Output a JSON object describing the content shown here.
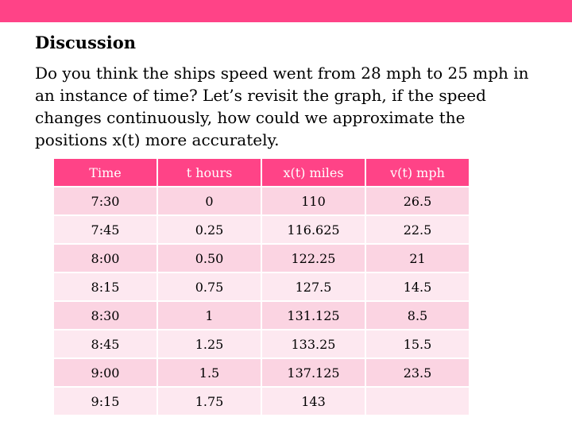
{
  "slide": {
    "heading": "Discussion",
    "paragraph_lines": [
      "Do you think the ships speed went from 28 mph to 25 mph in",
      "an instance of time? Let’s revisit the graph, if the speed",
      "changes continuously, how could we approximate the",
      "positions x(t) more accurately."
    ],
    "accent_color": "#ff4387"
  },
  "table": {
    "headers": [
      "Time",
      "t hours",
      "x(t) miles",
      "v(t) mph"
    ],
    "rows": [
      [
        "7:30",
        "0",
        "110",
        "26.5"
      ],
      [
        "7:45",
        "0.25",
        "116.625",
        "22.5"
      ],
      [
        "8:00",
        "0.50",
        "122.25",
        "21"
      ],
      [
        "8:15",
        "0.75",
        "127.5",
        "14.5"
      ],
      [
        "8:30",
        "1",
        "131.125",
        "8.5"
      ],
      [
        "8:45",
        "1.25",
        "133.25",
        "15.5"
      ],
      [
        "9:00",
        "1.5",
        "137.125",
        "23.5"
      ],
      [
        "9:15",
        "1.75",
        "143",
        ""
      ]
    ]
  }
}
